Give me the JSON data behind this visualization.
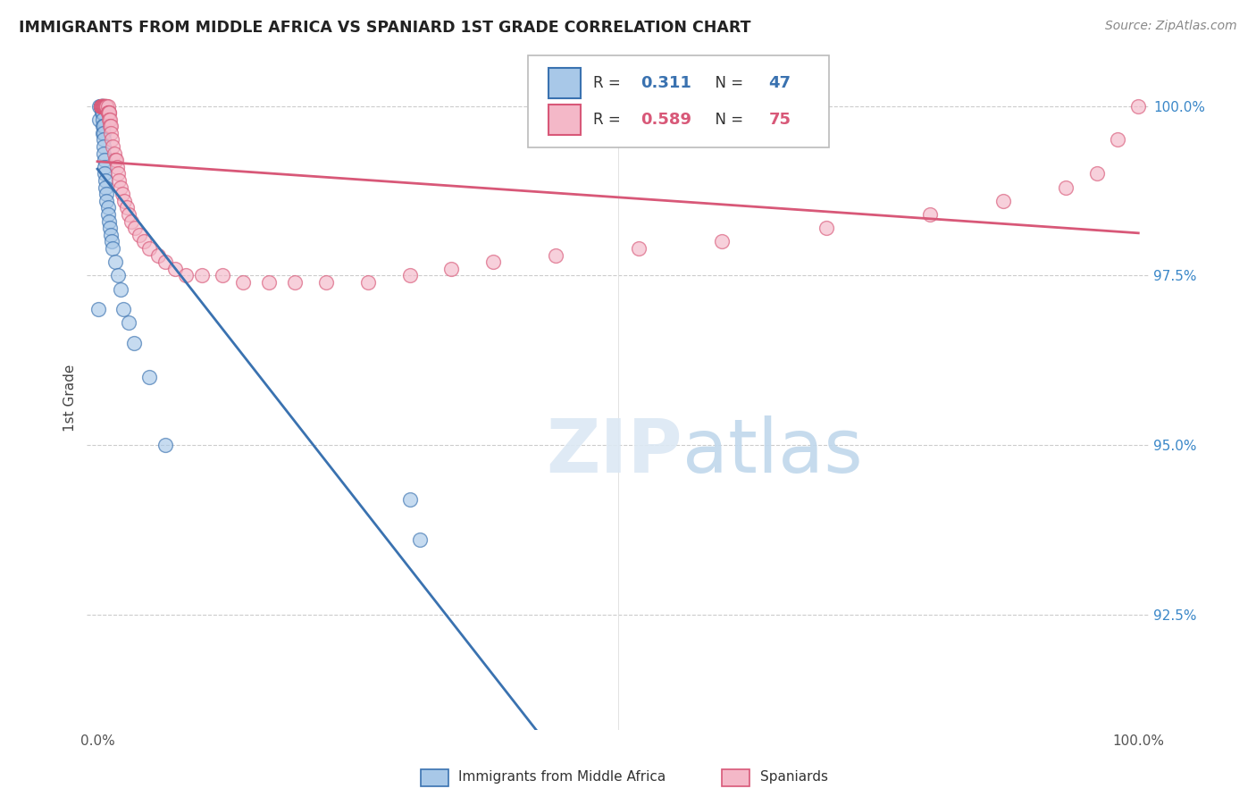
{
  "title": "IMMIGRANTS FROM MIDDLE AFRICA VS SPANIARD 1ST GRADE CORRELATION CHART",
  "source": "Source: ZipAtlas.com",
  "ylabel": "1st Grade",
  "ytick_labels": [
    "100.0%",
    "97.5%",
    "95.0%",
    "92.5%"
  ],
  "ytick_values": [
    1.0,
    0.975,
    0.95,
    0.925
  ],
  "xmin": 0.0,
  "xmax": 1.0,
  "ymin": 0.908,
  "ymax": 1.006,
  "blue_color": "#a8c8e8",
  "pink_color": "#f4b8c8",
  "blue_line_color": "#3a72b0",
  "pink_line_color": "#d85878",
  "legend_blue_r": "0.311",
  "legend_blue_n": "47",
  "legend_pink_r": "0.589",
  "legend_pink_n": "75",
  "blue_x": [
    0.001,
    0.002,
    0.002,
    0.003,
    0.003,
    0.003,
    0.003,
    0.004,
    0.004,
    0.004,
    0.004,
    0.005,
    0.005,
    0.005,
    0.005,
    0.005,
    0.005,
    0.005,
    0.006,
    0.006,
    0.006,
    0.006,
    0.006,
    0.007,
    0.007,
    0.007,
    0.008,
    0.008,
    0.009,
    0.009,
    0.01,
    0.01,
    0.011,
    0.012,
    0.013,
    0.014,
    0.015,
    0.017,
    0.02,
    0.022,
    0.025,
    0.03,
    0.035,
    0.05,
    0.065,
    0.3,
    0.31
  ],
  "blue_y": [
    0.97,
    0.998,
    1.0,
    1.0,
    1.0,
    1.0,
    1.0,
    1.0,
    1.0,
    1.0,
    0.999,
    1.0,
    1.0,
    1.0,
    0.999,
    0.998,
    0.997,
    0.996,
    0.997,
    0.996,
    0.995,
    0.994,
    0.993,
    0.992,
    0.991,
    0.99,
    0.989,
    0.988,
    0.987,
    0.986,
    0.985,
    0.984,
    0.983,
    0.982,
    0.981,
    0.98,
    0.979,
    0.977,
    0.975,
    0.973,
    0.97,
    0.968,
    0.965,
    0.96,
    0.95,
    0.942,
    0.936
  ],
  "pink_x": [
    0.003,
    0.003,
    0.004,
    0.004,
    0.004,
    0.005,
    0.005,
    0.005,
    0.005,
    0.006,
    0.006,
    0.006,
    0.006,
    0.007,
    0.007,
    0.007,
    0.007,
    0.008,
    0.008,
    0.008,
    0.009,
    0.009,
    0.009,
    0.01,
    0.01,
    0.01,
    0.011,
    0.011,
    0.011,
    0.012,
    0.012,
    0.013,
    0.013,
    0.014,
    0.015,
    0.016,
    0.017,
    0.018,
    0.019,
    0.02,
    0.021,
    0.022,
    0.024,
    0.026,
    0.028,
    0.03,
    0.033,
    0.036,
    0.04,
    0.045,
    0.05,
    0.058,
    0.065,
    0.075,
    0.085,
    0.1,
    0.12,
    0.14,
    0.165,
    0.19,
    0.22,
    0.26,
    0.3,
    0.34,
    0.38,
    0.44,
    0.52,
    0.6,
    0.7,
    0.8,
    0.87,
    0.93,
    0.96,
    0.98,
    1.0
  ],
  "pink_y": [
    1.0,
    1.0,
    1.0,
    1.0,
    1.0,
    1.0,
    1.0,
    1.0,
    1.0,
    1.0,
    1.0,
    1.0,
    1.0,
    1.0,
    1.0,
    1.0,
    1.0,
    1.0,
    1.0,
    1.0,
    1.0,
    1.0,
    1.0,
    1.0,
    0.999,
    0.999,
    0.999,
    0.999,
    0.998,
    0.998,
    0.997,
    0.997,
    0.996,
    0.995,
    0.994,
    0.993,
    0.992,
    0.992,
    0.991,
    0.99,
    0.989,
    0.988,
    0.987,
    0.986,
    0.985,
    0.984,
    0.983,
    0.982,
    0.981,
    0.98,
    0.979,
    0.978,
    0.977,
    0.976,
    0.975,
    0.975,
    0.975,
    0.974,
    0.974,
    0.974,
    0.974,
    0.974,
    0.975,
    0.976,
    0.977,
    0.978,
    0.979,
    0.98,
    0.982,
    0.984,
    0.986,
    0.988,
    0.99,
    0.995,
    1.0
  ]
}
